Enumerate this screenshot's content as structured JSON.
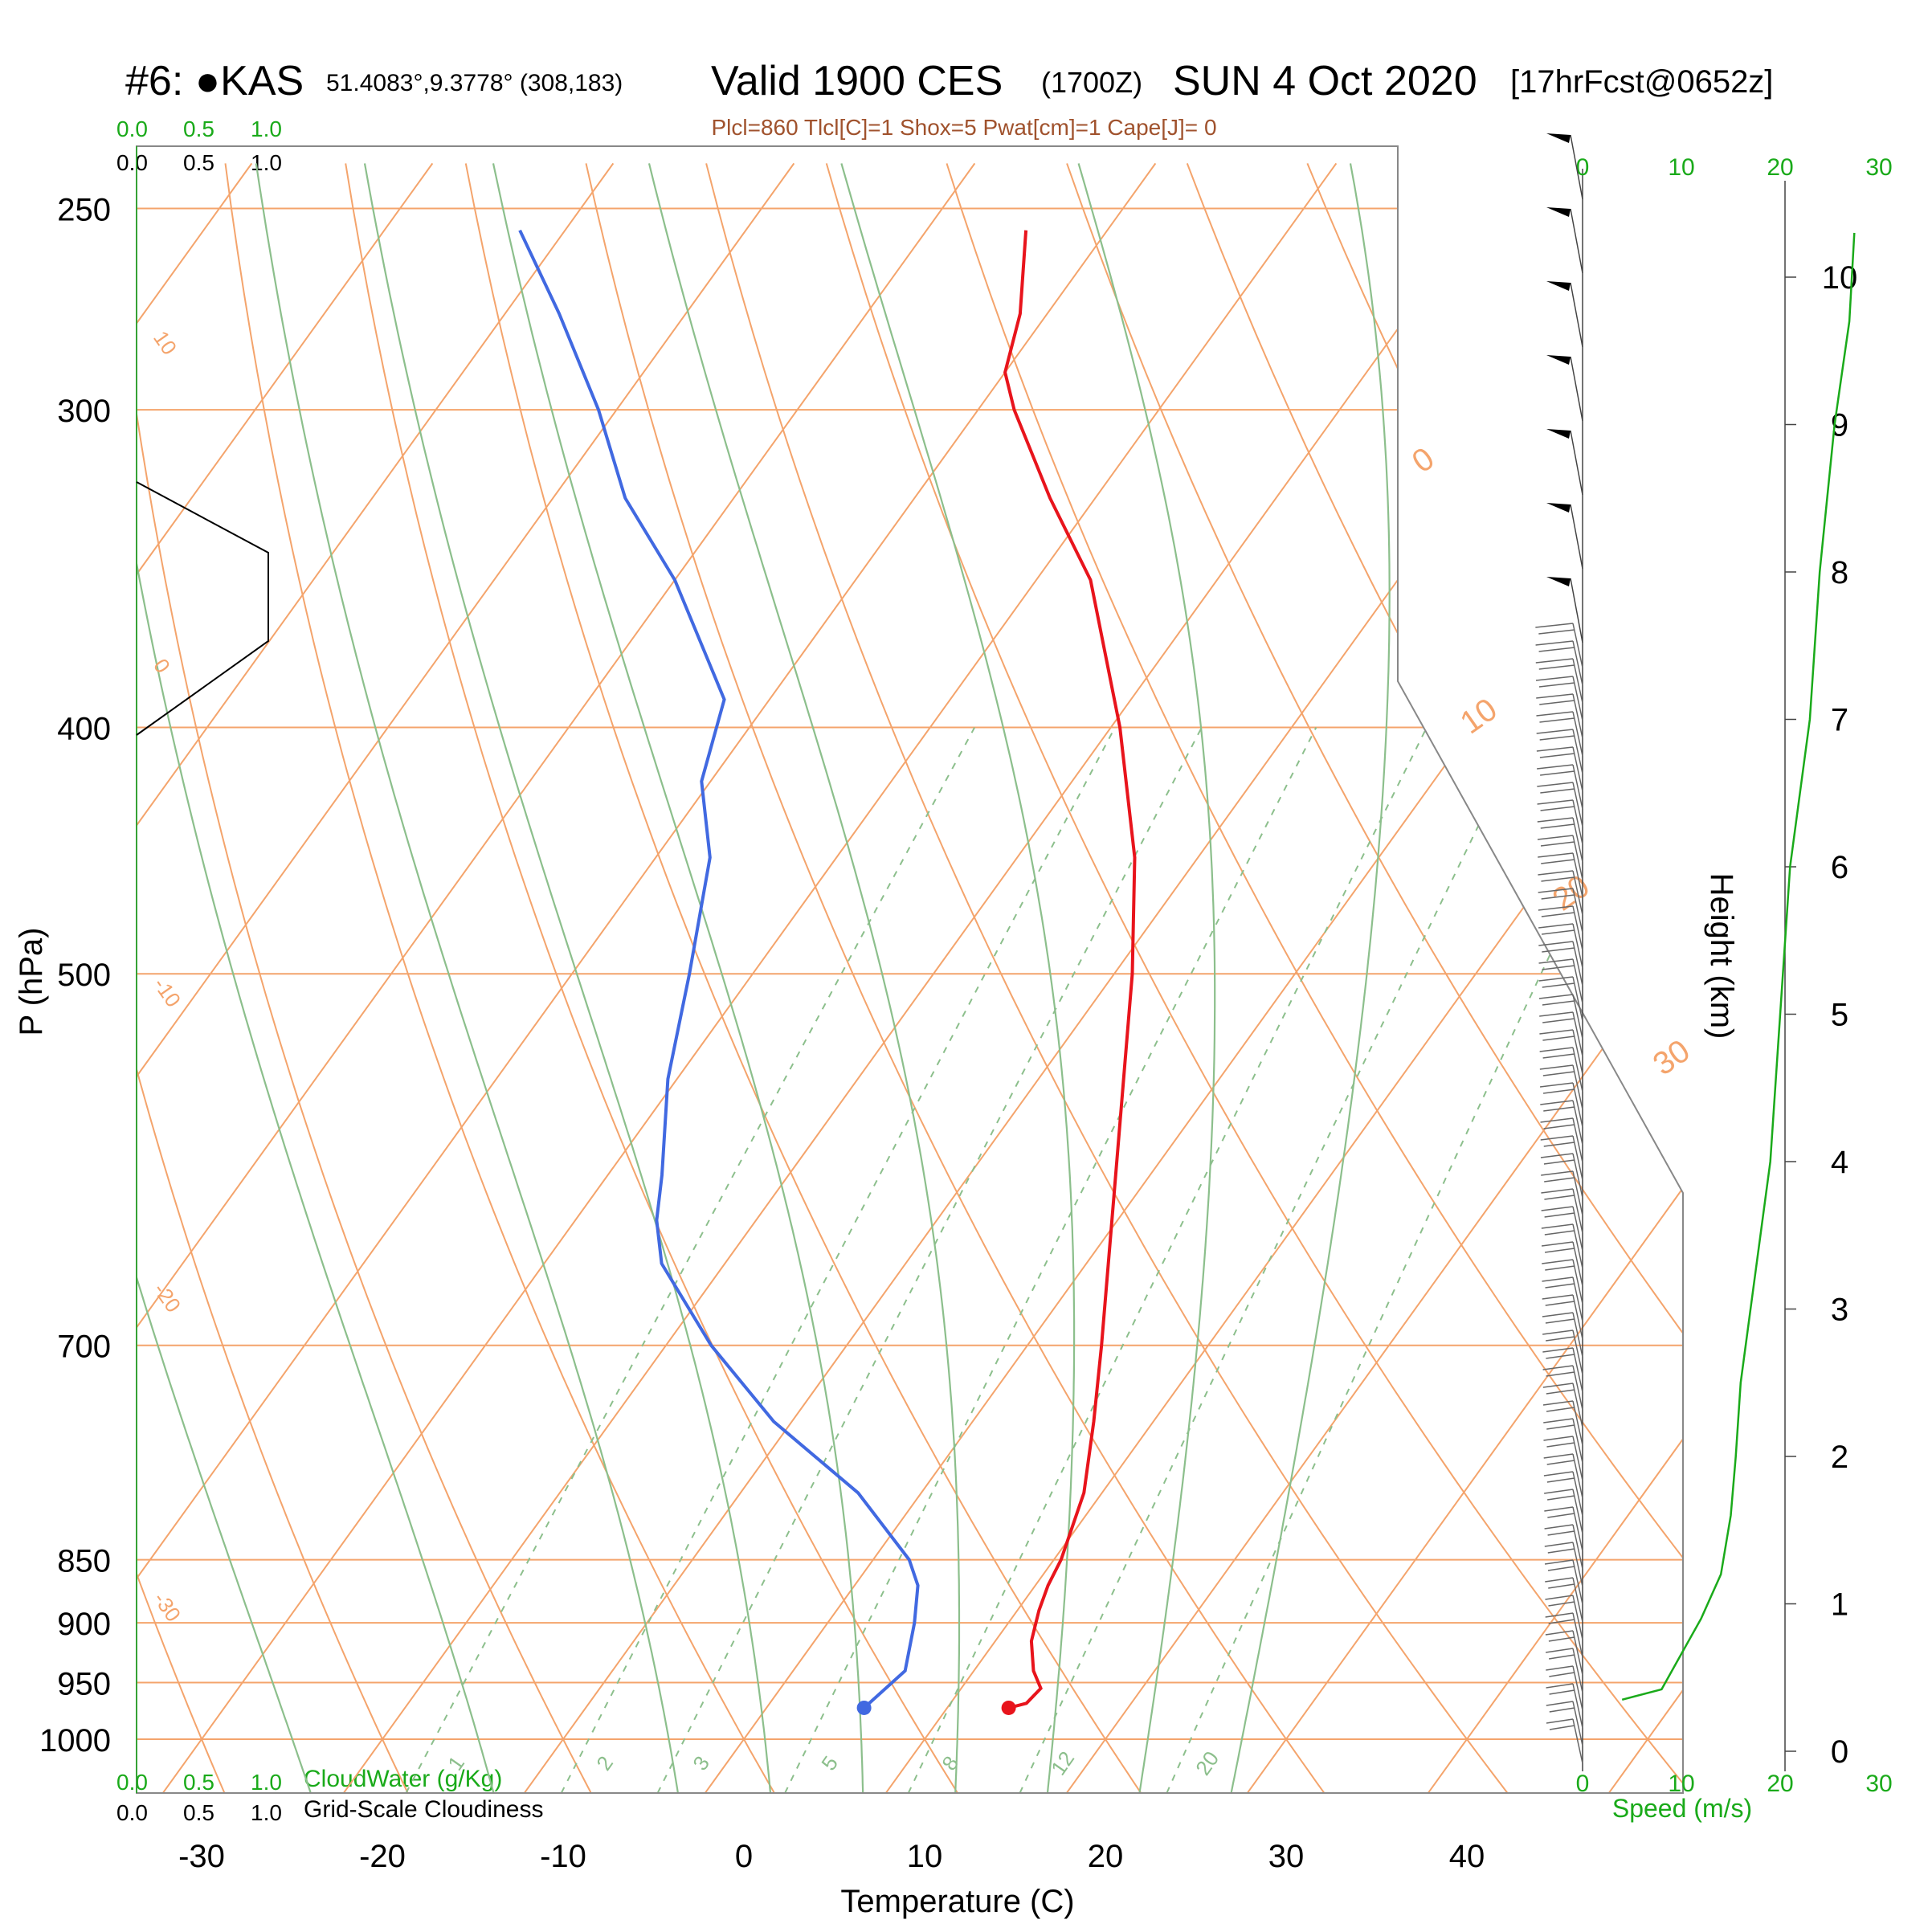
{
  "header": {
    "station": "#6: ●KAS",
    "coords": "51.4083°,9.3778° (308,183)",
    "valid": "Valid 1900 CES",
    "zulu": "(1700Z)",
    "date": "SUN 4 Oct 2020",
    "forecast": "[17hrFcst@0652z]",
    "indices": "Plcl=860 Tlcl[C]=1 Shox=5 Pwat[cm]=1 Cape[J]= 0"
  },
  "colors": {
    "temperature": "#e8141c",
    "dewpoint": "#4169e1",
    "isotherm": "#f4a46c",
    "adiabat": "#8cbf8c",
    "text_green": "#1aaa1a",
    "indices_text": "#a0522d"
  },
  "chart_data": {
    "type": "skew-t",
    "xlabel": "Temperature (C)",
    "ylabel": "P (hPa)",
    "y2label": "Height (km)",
    "x_ticks": [
      -30,
      -20,
      -10,
      0,
      10,
      20,
      30,
      40
    ],
    "p_ticks": [
      250,
      300,
      400,
      500,
      700,
      850,
      900,
      950,
      1000
    ],
    "height_ticks": [
      0,
      1,
      2,
      3,
      4,
      5,
      6,
      7,
      8,
      9,
      10
    ],
    "speed_ticks": [
      0,
      10,
      20,
      30
    ],
    "speed_label": "Speed (m/s)",
    "mixing_ratio_labels": [
      "1",
      "2",
      "3",
      "5",
      "8",
      "12",
      "20"
    ],
    "isotherm_labels_left": [
      "10",
      "0",
      "-10",
      "-20",
      "-30"
    ],
    "isotherm_labels_right": [
      "0",
      "10",
      "20",
      "30"
    ],
    "cloud_scale": [
      "0.0",
      "0.5",
      "1.0"
    ],
    "cloudwater_label": "CloudWater (g/Kg)",
    "cloudiness_label": "Grid-Scale Cloudiness",
    "temperature_profile": [
      {
        "p": 972,
        "t": 13.4
      },
      {
        "p": 968,
        "t": 14.2
      },
      {
        "p": 955,
        "t": 14.4
      },
      {
        "p": 940,
        "t": 13.3
      },
      {
        "p": 915,
        "t": 12.0
      },
      {
        "p": 890,
        "t": 11.2
      },
      {
        "p": 870,
        "t": 10.7
      },
      {
        "p": 850,
        "t": 10.4
      },
      {
        "p": 800,
        "t": 9.0
      },
      {
        "p": 750,
        "t": 6.7
      },
      {
        "p": 700,
        "t": 4.1
      },
      {
        "p": 600,
        "t": -1.9
      },
      {
        "p": 500,
        "t": -9.0
      },
      {
        "p": 450,
        "t": -13.5
      },
      {
        "p": 400,
        "t": -19.5
      },
      {
        "p": 350,
        "t": -27.0
      },
      {
        "p": 325,
        "t": -32.5
      },
      {
        "p": 300,
        "t": -38.0
      },
      {
        "p": 290,
        "t": -40.0
      },
      {
        "p": 275,
        "t": -41.5
      },
      {
        "p": 255,
        "t": -44.5
      }
    ],
    "dewpoint_profile": [
      {
        "p": 972,
        "td": 5.4
      },
      {
        "p": 940,
        "td": 6.2
      },
      {
        "p": 900,
        "td": 4.8
      },
      {
        "p": 870,
        "td": 3.5
      },
      {
        "p": 850,
        "td": 2.0
      },
      {
        "p": 800,
        "td": -3.5
      },
      {
        "p": 750,
        "td": -11.0
      },
      {
        "p": 700,
        "td": -17.5
      },
      {
        "p": 650,
        "td": -23.5
      },
      {
        "p": 625,
        "td": -25.5
      },
      {
        "p": 600,
        "td": -27.0
      },
      {
        "p": 550,
        "td": -30.5
      },
      {
        "p": 500,
        "td": -33.5
      },
      {
        "p": 450,
        "td": -37.0
      },
      {
        "p": 420,
        "td": -40.5
      },
      {
        "p": 390,
        "td": -42.5
      },
      {
        "p": 350,
        "td": -50.0
      },
      {
        "p": 325,
        "td": -56.0
      },
      {
        "p": 300,
        "td": -61.0
      },
      {
        "p": 275,
        "td": -67.0
      },
      {
        "p": 255,
        "td": -72.5
      }
    ],
    "wind_speed_profile": [
      {
        "h": 0.35,
        "s": 4
      },
      {
        "h": 0.42,
        "s": 8
      },
      {
        "h": 0.6,
        "s": 9.5
      },
      {
        "h": 0.9,
        "s": 12
      },
      {
        "h": 1.2,
        "s": 14
      },
      {
        "h": 1.6,
        "s": 15
      },
      {
        "h": 2.0,
        "s": 15.5
      },
      {
        "h": 2.5,
        "s": 16
      },
      {
        "h": 3.0,
        "s": 17
      },
      {
        "h": 3.5,
        "s": 18
      },
      {
        "h": 4.0,
        "s": 19
      },
      {
        "h": 5.0,
        "s": 20
      },
      {
        "h": 6.0,
        "s": 21
      },
      {
        "h": 7.0,
        "s": 23
      },
      {
        "h": 8.0,
        "s": 24
      },
      {
        "h": 9.0,
        "s": 25.5
      },
      {
        "h": 9.7,
        "s": 27
      },
      {
        "h": 10.3,
        "s": 27.5
      }
    ]
  }
}
